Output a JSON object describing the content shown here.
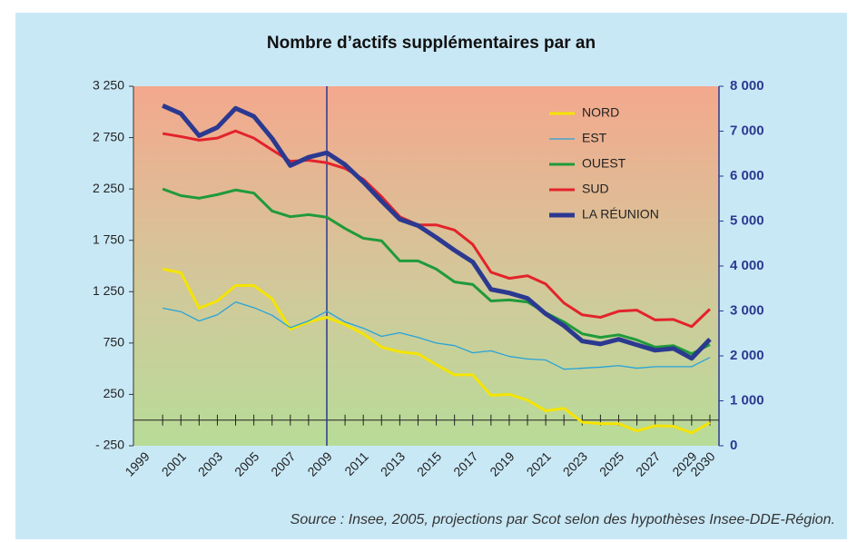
{
  "chart_data": {
    "type": "line",
    "title": "Nombre d’actifs supplémentaires par an",
    "source": "Source : Insee, 2005, projections par Scot selon des hypothèses Insee-DDE-Région.",
    "x": [
      2000,
      2001,
      2002,
      2003,
      2004,
      2005,
      2006,
      2007,
      2008,
      2009,
      2010,
      2011,
      2012,
      2013,
      2014,
      2015,
      2016,
      2017,
      2018,
      2019,
      2020,
      2021,
      2022,
      2023,
      2024,
      2025,
      2026,
      2027,
      2028,
      2029,
      2030
    ],
    "xlim": [
      1998.4,
      2030.5
    ],
    "xticks": [
      1999,
      2001,
      2003,
      2005,
      2007,
      2009,
      2011,
      2013,
      2015,
      2017,
      2019,
      2021,
      2023,
      2025,
      2027,
      2029,
      2030
    ],
    "ylim": [
      -250,
      3250
    ],
    "yticks": [
      {
        "value": 3250,
        "label": "3 250"
      },
      {
        "value": 2750,
        "label": "2 750"
      },
      {
        "value": 2250,
        "label": "2 250"
      },
      {
        "value": 1750,
        "label": "1 750"
      },
      {
        "value": 1250,
        "label": "1 250"
      },
      750,
      250,
      {
        "value": -250,
        "label": "- 250"
      }
    ],
    "y2lim": [
      0,
      8000
    ],
    "y2ticks": [
      {
        "value": 8000,
        "label": "8 000"
      },
      {
        "value": 7000,
        "label": "7 000"
      },
      {
        "value": 6000,
        "label": "6 000"
      },
      {
        "value": 5000,
        "label": "5 000"
      },
      {
        "value": 4000,
        "label": "4 000"
      },
      {
        "value": 3000,
        "label": "3 000"
      },
      {
        "value": 2000,
        "label": "2 000"
      },
      {
        "value": 1000,
        "label": "1 000"
      },
      0
    ],
    "reference_line_x": 2009,
    "legend": "top-right",
    "series": [
      {
        "name": "NORD",
        "color": "#f5e400",
        "linewidth": 3,
        "values": [
          1470,
          1435,
          1090,
          1160,
          1310,
          1310,
          1180,
          885,
          955,
          1000,
          930,
          840,
          710,
          665,
          645,
          540,
          440,
          440,
          240,
          250,
          195,
          90,
          115,
          -20,
          -35,
          -35,
          -105,
          -55,
          -60,
          -125,
          -25
        ]
      },
      {
        "name": "EST",
        "color": "#27a3d9",
        "linewidth": 1.3,
        "values": [
          1090,
          1055,
          965,
          1025,
          1150,
          1095,
          1020,
          900,
          965,
          1060,
          955,
          895,
          815,
          850,
          805,
          750,
          725,
          655,
          675,
          620,
          595,
          585,
          495,
          505,
          515,
          530,
          505,
          520,
          520,
          520,
          610
        ]
      },
      {
        "name": "OUEST",
        "color": "#1f9a3a",
        "linewidth": 3,
        "values": [
          2250,
          2185,
          2160,
          2195,
          2240,
          2210,
          2035,
          1980,
          2000,
          1975,
          1865,
          1770,
          1745,
          1550,
          1550,
          1470,
          1345,
          1320,
          1160,
          1170,
          1150,
          1045,
          955,
          840,
          805,
          830,
          780,
          710,
          725,
          645,
          735
        ]
      },
      {
        "name": "SUD",
        "color": "#e3232b",
        "linewidth": 3,
        "values": [
          2790,
          2760,
          2725,
          2745,
          2815,
          2745,
          2630,
          2520,
          2530,
          2505,
          2450,
          2345,
          2175,
          1980,
          1900,
          1900,
          1850,
          1710,
          1440,
          1380,
          1405,
          1325,
          1140,
          1025,
          1000,
          1060,
          1070,
          975,
          980,
          910,
          1080
        ]
      },
      {
        "name": "LA RÉUNION",
        "color": "#2b3990",
        "linewidth": 5,
        "axis": "y2",
        "values": [
          7570,
          7390,
          6900,
          7085,
          7510,
          7330,
          6840,
          6235,
          6420,
          6520,
          6255,
          5870,
          5445,
          5040,
          4900,
          4635,
          4350,
          4090,
          3480,
          3400,
          3280,
          2935,
          2670,
          2330,
          2265,
          2370,
          2245,
          2125,
          2165,
          1945,
          2370
        ]
      }
    ]
  }
}
